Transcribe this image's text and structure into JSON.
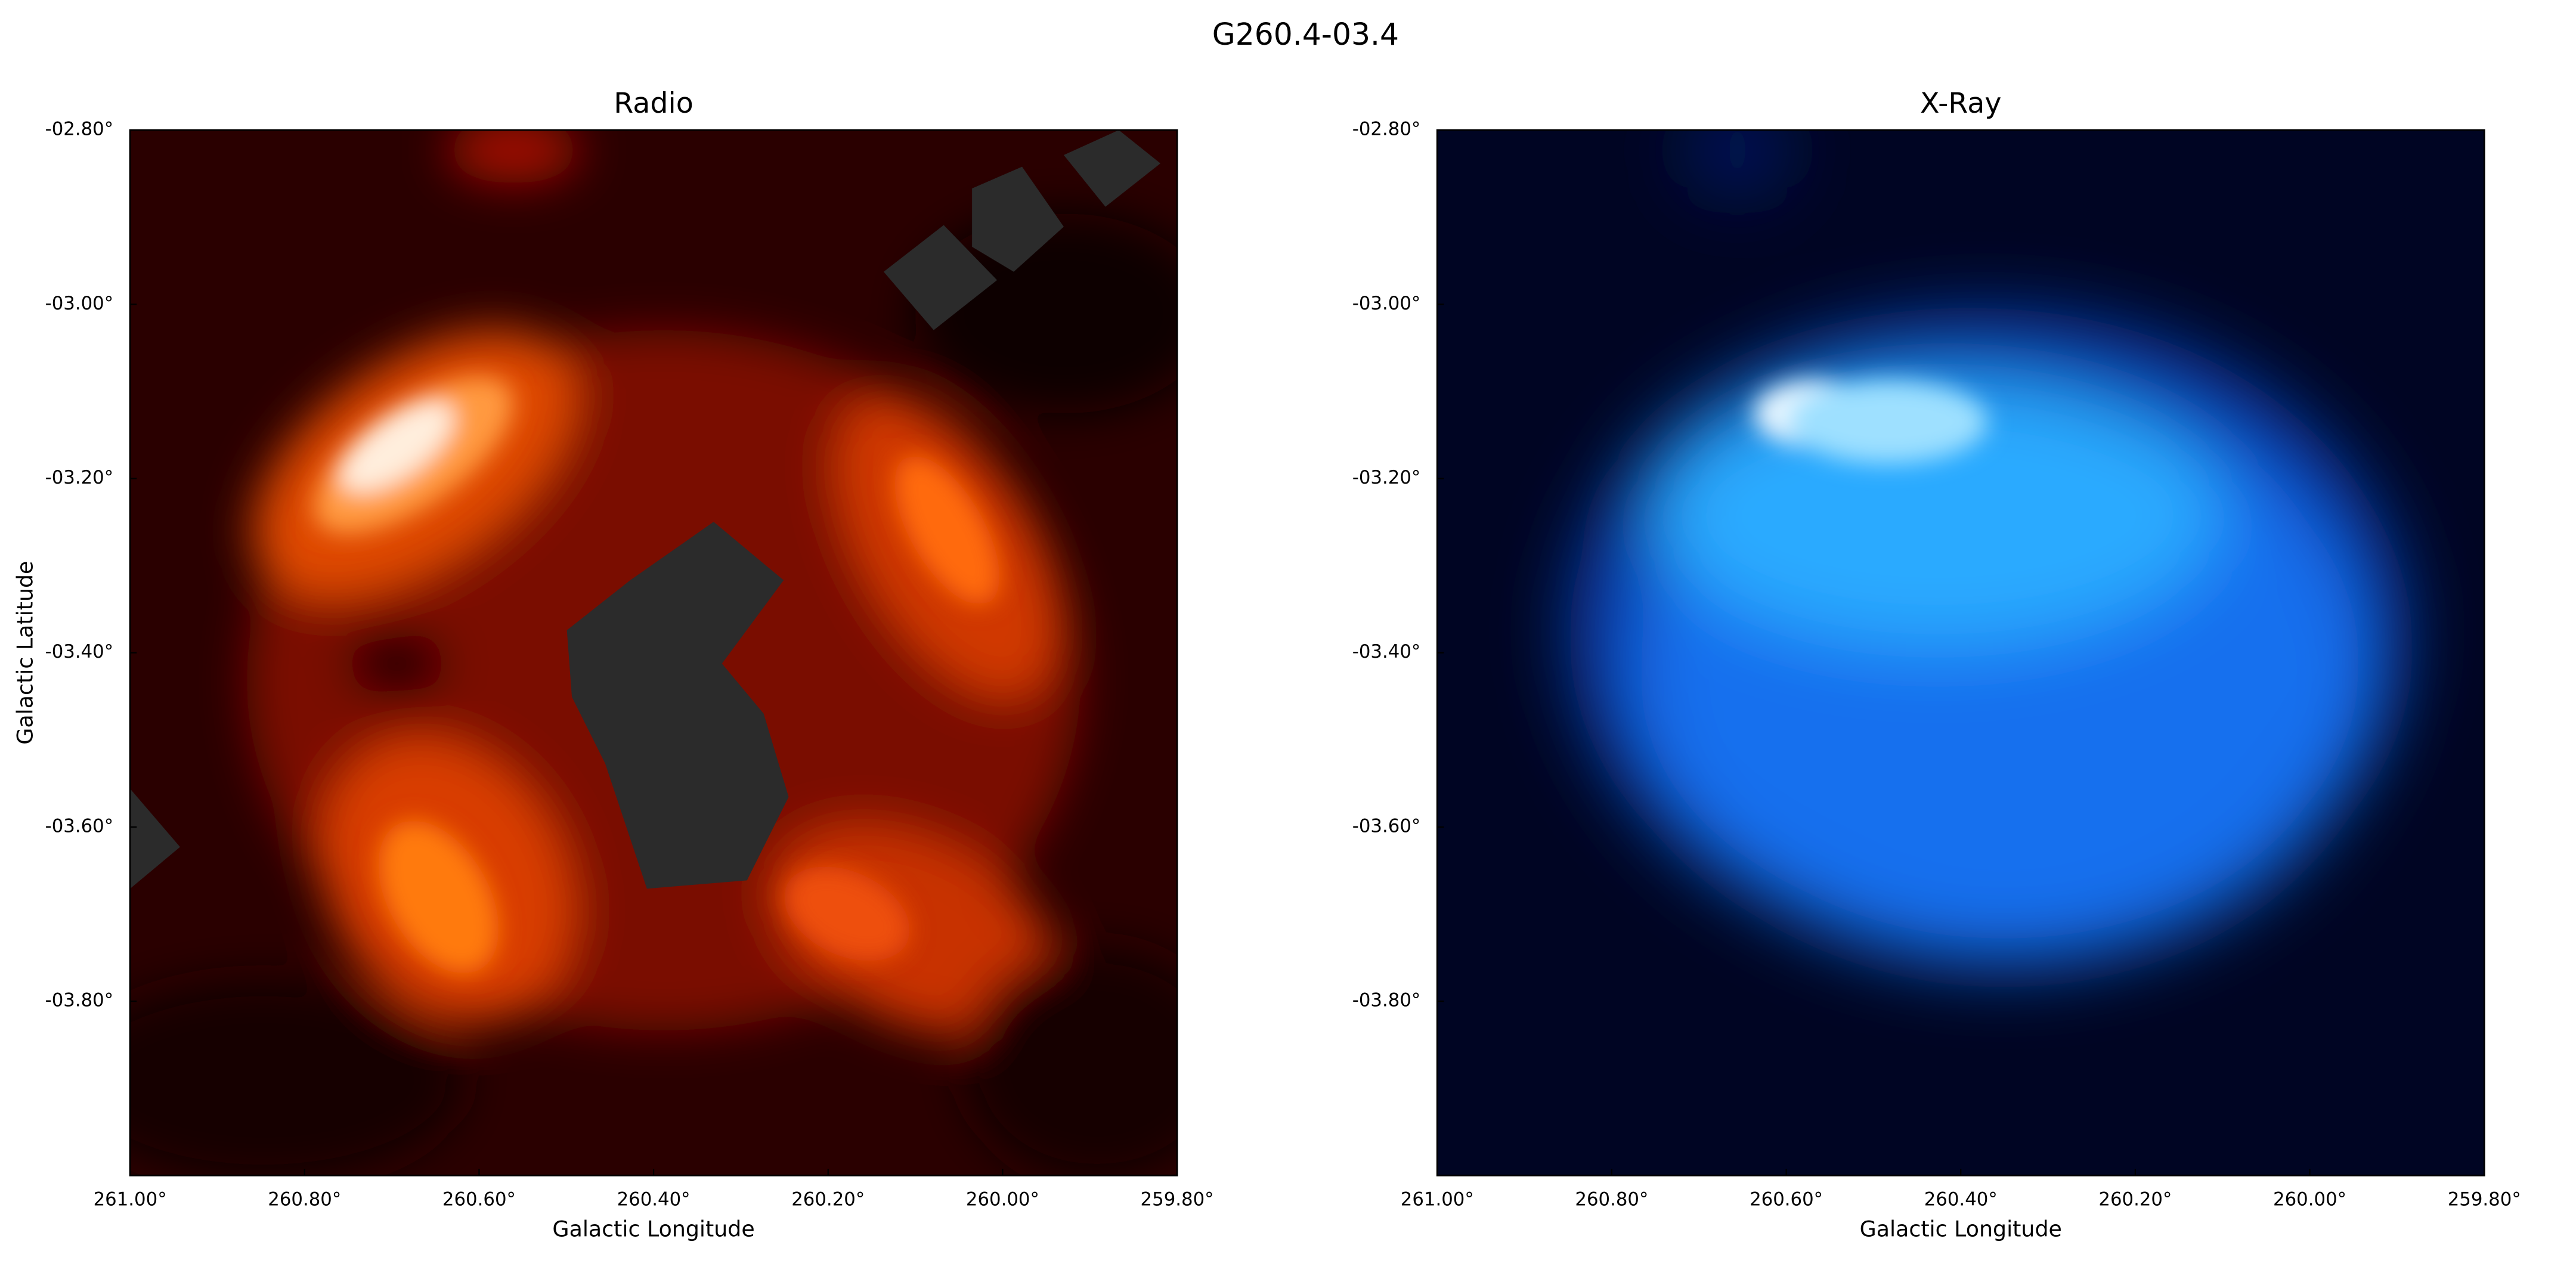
{
  "title": "G260.4-03.4",
  "chart_data": [
    {
      "type": "image",
      "title": "Radio",
      "xlabel": "Galactic Longitude",
      "ylabel": "Galactic Latitude",
      "xlim": [
        261.0,
        259.8
      ],
      "ylim": [
        -4.0,
        -2.8
      ],
      "xticks": [
        {
          "value": 261.0,
          "label": "261.00°"
        },
        {
          "value": 260.8,
          "label": "260.80°"
        },
        {
          "value": 260.6,
          "label": "260.60°"
        },
        {
          "value": 260.4,
          "label": "260.40°"
        },
        {
          "value": 260.2,
          "label": "260.20°"
        },
        {
          "value": 260.0,
          "label": "260.00°"
        },
        {
          "value": 259.8,
          "label": "259.80°"
        }
      ],
      "yticks": [
        {
          "value": -2.8,
          "label": "-02.80°"
        },
        {
          "value": -3.0,
          "label": "-03.00°"
        },
        {
          "value": -3.2,
          "label": "-03.20°"
        },
        {
          "value": -3.4,
          "label": "-03.40°"
        },
        {
          "value": -3.6,
          "label": "-03.60°"
        },
        {
          "value": -3.8,
          "label": "-03.80°"
        }
      ]
    },
    {
      "type": "image",
      "title": "X-Ray",
      "xlabel": "Galactic Longitude",
      "xlim": [
        261.0,
        259.8
      ],
      "ylim": [
        -4.0,
        -2.8
      ],
      "xticks": [
        {
          "value": 261.0,
          "label": "261.00°"
        },
        {
          "value": 260.8,
          "label": "260.80°"
        },
        {
          "value": 260.6,
          "label": "260.60°"
        },
        {
          "value": 260.4,
          "label": "260.40°"
        },
        {
          "value": 260.2,
          "label": "260.20°"
        },
        {
          "value": 260.0,
          "label": "260.00°"
        },
        {
          "value": 259.8,
          "label": "259.80°"
        }
      ],
      "yticks": [
        {
          "value": -2.8,
          "label": "-02.80°"
        },
        {
          "value": -3.0,
          "label": "-03.00°"
        },
        {
          "value": -3.2,
          "label": "-03.20°"
        },
        {
          "value": -3.4,
          "label": "-03.40°"
        },
        {
          "value": -3.6,
          "label": "-03.60°"
        },
        {
          "value": -3.8,
          "label": "-03.80°"
        }
      ]
    }
  ]
}
